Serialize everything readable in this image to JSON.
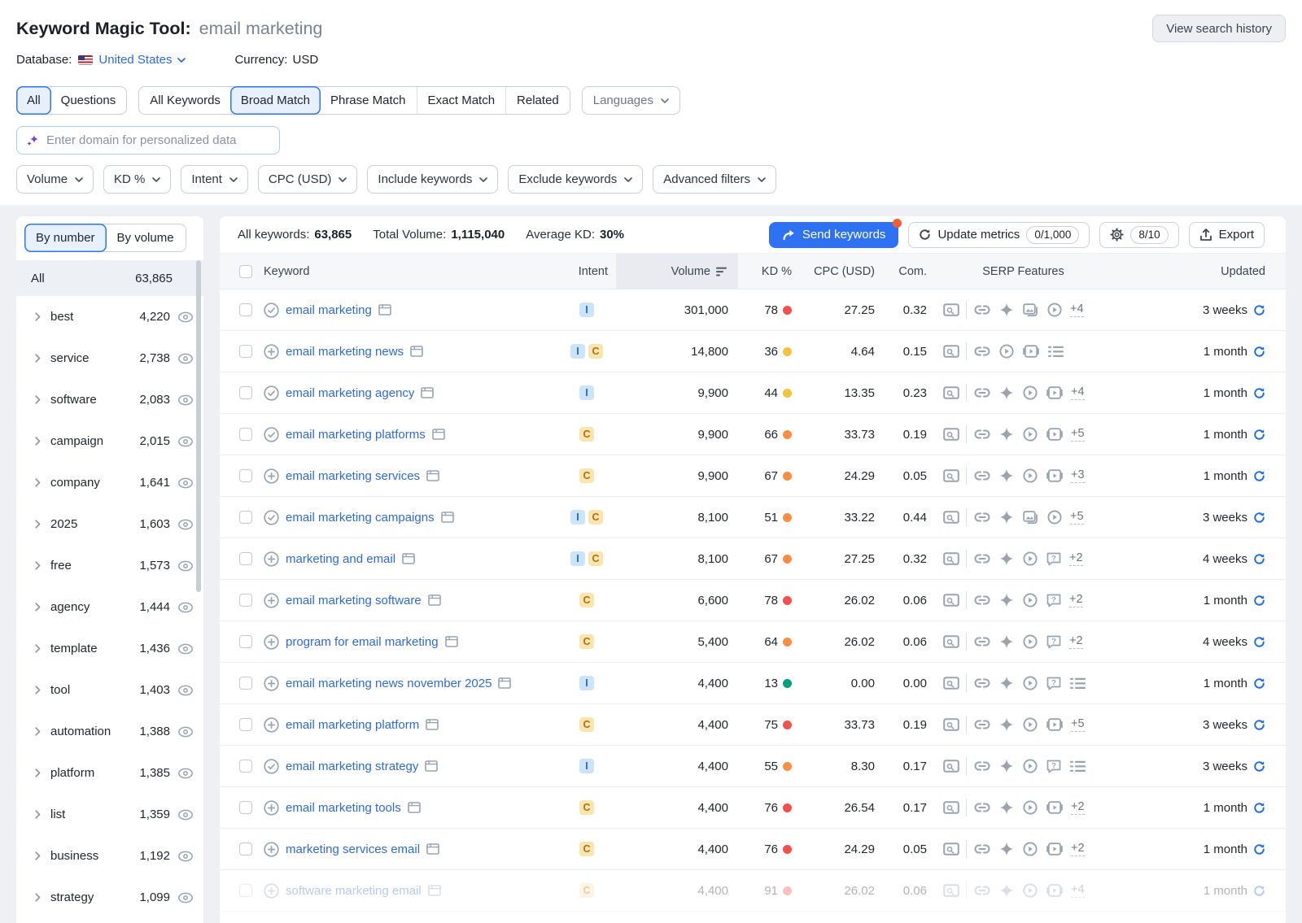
{
  "header": {
    "title": "Keyword Magic Tool:",
    "query": "email marketing",
    "view_history_label": "View search history",
    "database_label": "Database:",
    "database_value": "United States",
    "currency_label": "Currency:",
    "currency_value": "USD"
  },
  "match_tabs": {
    "group1": [
      {
        "label": "All",
        "active": true
      },
      {
        "label": "Questions",
        "active": false
      }
    ],
    "group2": [
      {
        "label": "All Keywords",
        "active": false
      },
      {
        "label": "Broad Match",
        "active": true
      },
      {
        "label": "Phrase Match",
        "active": false
      },
      {
        "label": "Exact Match",
        "active": false
      },
      {
        "label": "Related",
        "active": false
      }
    ],
    "languages_label": "Languages"
  },
  "domain_input": {
    "placeholder": "Enter domain for personalized data"
  },
  "filters": [
    {
      "label": "Volume"
    },
    {
      "label": "KD %"
    },
    {
      "label": "Intent"
    },
    {
      "label": "CPC (USD)"
    },
    {
      "label": "Include keywords"
    },
    {
      "label": "Exclude keywords"
    },
    {
      "label": "Advanced filters"
    }
  ],
  "sidebar": {
    "toggle": [
      {
        "label": "By number",
        "active": true
      },
      {
        "label": "By volume",
        "active": false
      }
    ],
    "all_row": {
      "label": "All",
      "count": "63,865"
    },
    "groups": [
      {
        "name": "best",
        "count": "4,220"
      },
      {
        "name": "service",
        "count": "2,738"
      },
      {
        "name": "software",
        "count": "2,083"
      },
      {
        "name": "campaign",
        "count": "2,015"
      },
      {
        "name": "company",
        "count": "1,641"
      },
      {
        "name": "2025",
        "count": "1,603"
      },
      {
        "name": "free",
        "count": "1,573"
      },
      {
        "name": "agency",
        "count": "1,444"
      },
      {
        "name": "template",
        "count": "1,436"
      },
      {
        "name": "tool",
        "count": "1,403"
      },
      {
        "name": "automation",
        "count": "1,388"
      },
      {
        "name": "platform",
        "count": "1,385"
      },
      {
        "name": "list",
        "count": "1,359"
      },
      {
        "name": "business",
        "count": "1,192"
      },
      {
        "name": "strategy",
        "count": "1,099"
      }
    ]
  },
  "stats": {
    "all_keywords_label": "All keywords:",
    "all_keywords_value": "63,865",
    "total_volume_label": "Total Volume:",
    "total_volume_value": "1,115,040",
    "average_kd_label": "Average KD:",
    "average_kd_value": "30%"
  },
  "actions": {
    "send_keywords_label": "Send keywords",
    "update_metrics_label": "Update metrics",
    "update_metrics_badge": "0/1,000",
    "gear_badge": "8/10",
    "export_label": "Export"
  },
  "table": {
    "columns": {
      "keyword": "Keyword",
      "intent": "Intent",
      "volume": "Volume",
      "kd": "KD %",
      "cpc": "CPC (USD)",
      "com": "Com.",
      "serp": "SERP Features",
      "updated": "Updated"
    },
    "rows": [
      {
        "keyword": "email marketing",
        "state_icon": "check-circle",
        "intents": [
          "I"
        ],
        "volume": "301,000",
        "kd": "78",
        "kd_level": "red",
        "cpc": "27.25",
        "com": "0.32",
        "serp_icons": [
          "link",
          "diamond",
          "image",
          "play"
        ],
        "serp_more": "+4",
        "updated": "3 weeks",
        "faded": false
      },
      {
        "keyword": "email marketing news",
        "state_icon": "plus-circle",
        "intents": [
          "I",
          "C"
        ],
        "volume": "14,800",
        "kd": "36",
        "kd_level": "yellow",
        "cpc": "4.64",
        "com": "0.15",
        "serp_icons": [
          "link",
          "play",
          "video",
          "list"
        ],
        "serp_more": "",
        "updated": "1 month",
        "faded": false
      },
      {
        "keyword": "email marketing agency",
        "state_icon": "check-circle",
        "intents": [
          "I"
        ],
        "volume": "9,900",
        "kd": "44",
        "kd_level": "yellow",
        "cpc": "13.35",
        "com": "0.23",
        "serp_icons": [
          "link",
          "diamond",
          "play",
          "video"
        ],
        "serp_more": "+4",
        "updated": "1 month",
        "faded": false
      },
      {
        "keyword": "email marketing platforms",
        "state_icon": "check-circle",
        "intents": [
          "C"
        ],
        "volume": "9,900",
        "kd": "66",
        "kd_level": "orange",
        "cpc": "33.73",
        "com": "0.19",
        "serp_icons": [
          "link",
          "diamond",
          "play",
          "video"
        ],
        "serp_more": "+5",
        "updated": "1 month",
        "faded": false
      },
      {
        "keyword": "email marketing services",
        "state_icon": "plus-circle",
        "intents": [
          "C"
        ],
        "volume": "9,900",
        "kd": "67",
        "kd_level": "orange",
        "cpc": "24.29",
        "com": "0.05",
        "serp_icons": [
          "link",
          "diamond",
          "play",
          "video"
        ],
        "serp_more": "+3",
        "updated": "1 month",
        "faded": false
      },
      {
        "keyword": "email marketing campaigns",
        "state_icon": "check-circle",
        "intents": [
          "I",
          "C"
        ],
        "volume": "8,100",
        "kd": "51",
        "kd_level": "orange",
        "cpc": "33.22",
        "com": "0.44",
        "serp_icons": [
          "link",
          "diamond",
          "image",
          "play"
        ],
        "serp_more": "+5",
        "updated": "3 weeks",
        "faded": false
      },
      {
        "keyword": "marketing and email",
        "state_icon": "plus-circle",
        "intents": [
          "I",
          "C"
        ],
        "volume": "8,100",
        "kd": "67",
        "kd_level": "orange",
        "cpc": "27.25",
        "com": "0.32",
        "serp_icons": [
          "link",
          "diamond",
          "play",
          "question"
        ],
        "serp_more": "+2",
        "updated": "4 weeks",
        "faded": false
      },
      {
        "keyword": "email marketing software",
        "state_icon": "plus-circle",
        "intents": [
          "C"
        ],
        "volume": "6,600",
        "kd": "78",
        "kd_level": "red",
        "cpc": "26.02",
        "com": "0.06",
        "serp_icons": [
          "link",
          "diamond",
          "play",
          "question"
        ],
        "serp_more": "+2",
        "updated": "1 month",
        "faded": false
      },
      {
        "keyword": "program for email marketing",
        "state_icon": "plus-circle",
        "intents": [
          "C"
        ],
        "volume": "5,400",
        "kd": "64",
        "kd_level": "orange",
        "cpc": "26.02",
        "com": "0.06",
        "serp_icons": [
          "link",
          "diamond",
          "play",
          "question"
        ],
        "serp_more": "+2",
        "updated": "4 weeks",
        "faded": false
      },
      {
        "keyword": "email marketing news november 2025",
        "state_icon": "plus-circle",
        "intents": [
          "I"
        ],
        "volume": "4,400",
        "kd": "13",
        "kd_level": "green",
        "cpc": "0.00",
        "com": "0.00",
        "serp_icons": [
          "link",
          "diamond",
          "play",
          "question",
          "list"
        ],
        "serp_more": "",
        "updated": "1 month",
        "faded": false
      },
      {
        "keyword": "email marketing platform",
        "state_icon": "plus-circle",
        "intents": [
          "C"
        ],
        "volume": "4,400",
        "kd": "75",
        "kd_level": "red",
        "cpc": "33.73",
        "com": "0.19",
        "serp_icons": [
          "link",
          "diamond",
          "play",
          "video"
        ],
        "serp_more": "+5",
        "updated": "3 weeks",
        "faded": false
      },
      {
        "keyword": "email marketing strategy",
        "state_icon": "check-circle",
        "intents": [
          "I"
        ],
        "volume": "4,400",
        "kd": "55",
        "kd_level": "orange",
        "cpc": "8.30",
        "com": "0.17",
        "serp_icons": [
          "link",
          "diamond",
          "play",
          "question",
          "list"
        ],
        "serp_more": "",
        "updated": "3 weeks",
        "faded": false
      },
      {
        "keyword": "email marketing tools",
        "state_icon": "plus-circle",
        "intents": [
          "C"
        ],
        "volume": "4,400",
        "kd": "76",
        "kd_level": "red",
        "cpc": "26.54",
        "com": "0.17",
        "serp_icons": [
          "link",
          "diamond",
          "play",
          "video"
        ],
        "serp_more": "+2",
        "updated": "1 month",
        "faded": false
      },
      {
        "keyword": "marketing services email",
        "state_icon": "plus-circle",
        "intents": [
          "C"
        ],
        "volume": "4,400",
        "kd": "76",
        "kd_level": "red",
        "cpc": "24.29",
        "com": "0.05",
        "serp_icons": [
          "link",
          "diamond",
          "play",
          "video"
        ],
        "serp_more": "+2",
        "updated": "1 month",
        "faded": false
      },
      {
        "keyword": "software marketing email",
        "state_icon": "plus-circle",
        "intents": [
          "C"
        ],
        "volume": "4,400",
        "kd": "91",
        "kd_level": "red",
        "cpc": "26.02",
        "com": "0.06",
        "serp_icons": [
          "link",
          "diamond",
          "play",
          "video"
        ],
        "serp_more": "+4",
        "updated": "1 month",
        "faded": true
      }
    ]
  },
  "colors": {
    "accent_blue": "#2e72f3",
    "link_blue": "#2d6ae0",
    "kd_red": "#f4504b",
    "kd_orange": "#ff8c43",
    "kd_yellow": "#f3c33f",
    "kd_green": "#019f81",
    "intent_informational_bg": "#cbe4fb",
    "intent_informational_text": "#1f6ad1",
    "intent_commercial_bg": "#fbe5ae",
    "intent_commercial_text": "#b06f15",
    "notification_dot": "#f95c35"
  }
}
